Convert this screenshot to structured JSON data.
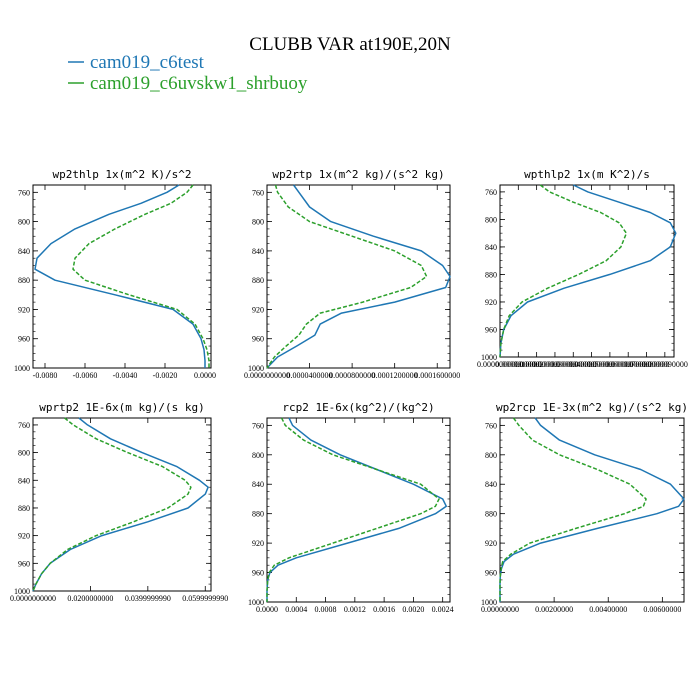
{
  "title": "CLUBB VAR at190E,20N",
  "legend": [
    {
      "label": "cam019_c6test",
      "color": "#1f77b4",
      "dashed": false
    },
    {
      "label": "cam019_c6uvskw1_shrbuoy",
      "color": "#2ca02c",
      "dashed": true
    }
  ],
  "chart_data": [
    {
      "type": "line",
      "title": "wp2thlp  1x(m^2 K)/s^2",
      "ylim": [
        1000,
        750
      ],
      "yticks": [
        760,
        800,
        840,
        880,
        920,
        960,
        1000
      ],
      "xlim": [
        -0.0086,
        0.0003
      ],
      "xticks": [
        -0.008,
        -0.006,
        -0.004,
        -0.002,
        0.0
      ],
      "xticklabels": [
        "-0.0080",
        "-0.0060",
        "-0.0040",
        "-0.0020",
        "0.0000"
      ],
      "series": [
        {
          "color": "#1f77b4",
          "dashed": false,
          "y": [
            750,
            760,
            775,
            790,
            810,
            830,
            850,
            865,
            880,
            900,
            920,
            940,
            960,
            975,
            990,
            1000
          ],
          "x": [
            -0.0013,
            -0.0019,
            -0.0032,
            -0.0048,
            -0.0065,
            -0.0077,
            -0.0084,
            -0.0085,
            -0.0075,
            -0.0045,
            -0.0016,
            -0.0006,
            -0.0002,
            -5e-05,
            0.0,
            0.0
          ]
        },
        {
          "color": "#2ca02c",
          "dashed": true,
          "y": [
            750,
            760,
            775,
            790,
            810,
            830,
            850,
            865,
            880,
            900,
            920,
            940,
            960,
            975,
            990,
            1000
          ],
          "x": [
            -0.0006,
            -0.0009,
            -0.0017,
            -0.003,
            -0.0045,
            -0.0058,
            -0.0065,
            -0.0066,
            -0.006,
            -0.0038,
            -0.0014,
            -0.0005,
            -0.0001,
            0.0001,
            0.0002,
            0.0002
          ]
        }
      ]
    },
    {
      "type": "line",
      "title": "wp2rtp  1x(m^2 kg)/(s^2 kg)",
      "ylim": [
        1000,
        750
      ],
      "yticks": [
        760,
        800,
        840,
        880,
        920,
        960,
        1000
      ],
      "xlim": [
        0.0,
        0.000172
      ],
      "xticks": [
        0.0,
        4e-05,
        8e-05,
        0.00012,
        0.00016
      ],
      "xticklabels": [
        "0.0000000000",
        "0.0000400000",
        "0.0000800000",
        "0.0001200000",
        "0.0001600000"
      ],
      "series": [
        {
          "color": "#1f77b4",
          "dashed": false,
          "y": [
            750,
            760,
            780,
            800,
            820,
            840,
            860,
            875,
            890,
            910,
            925,
            940,
            955,
            970,
            985,
            1000
          ],
          "x": [
            2.5e-05,
            3e-05,
            4e-05,
            6e-05,
            0.0001,
            0.000145,
            0.000165,
            0.000172,
            0.000168,
            0.00012,
            7e-05,
            5e-05,
            4.5e-05,
            2.8e-05,
            1e-05,
            0.0
          ]
        },
        {
          "color": "#2ca02c",
          "dashed": true,
          "y": [
            750,
            760,
            780,
            800,
            820,
            840,
            860,
            875,
            890,
            910,
            925,
            940,
            955,
            970,
            985,
            1000
          ],
          "x": [
            8e-06,
            1e-05,
            2e-05,
            4e-05,
            8e-05,
            0.00012,
            0.000145,
            0.00015,
            0.000135,
            9e-05,
            5e-05,
            3.7e-05,
            3e-05,
            1.8e-05,
            7e-06,
            0.0
          ]
        }
      ]
    },
    {
      "type": "line",
      "title": "wpthlp2  1x(m K^2)/s",
      "ylim": [
        1000,
        750
      ],
      "yticks": [
        760,
        800,
        840,
        880,
        920,
        960,
        1000
      ],
      "xlim": [
        0.0,
        9.5e-06
      ],
      "xticks": [
        0.0,
        1e-06,
        2e-06,
        3e-06,
        4e-06,
        5e-06,
        6e-06,
        7e-06,
        8e-06,
        9e-06
      ],
      "xticklabels": [
        "0.0000000000",
        "0.0000010000",
        "0.0000020000",
        "0.0000030000",
        "0.0000040000",
        "0.0000050000",
        "0.0000060000",
        "0.0000070000",
        "0.0000080000",
        "0.0000090000"
      ],
      "series": [
        {
          "color": "#1f77b4",
          "dashed": false,
          "y": [
            750,
            760,
            775,
            790,
            805,
            820,
            840,
            860,
            880,
            900,
            920,
            940,
            960,
            980,
            1000
          ],
          "x": [
            4e-06,
            4.8e-06,
            6.5e-06,
            8.2e-06,
            9.3e-06,
            9.6e-06,
            9.3e-06,
            8.2e-06,
            6e-06,
            3.5e-06,
            1.5e-06,
            6e-07,
            2e-07,
            5e-08,
            0.0
          ]
        },
        {
          "color": "#2ca02c",
          "dashed": true,
          "y": [
            750,
            760,
            775,
            790,
            805,
            820,
            840,
            860,
            880,
            900,
            920,
            940,
            960,
            980,
            1000
          ],
          "x": [
            2.2e-06,
            2.7e-06,
            4e-06,
            5.5e-06,
            6.5e-06,
            6.9e-06,
            6.6e-06,
            5.8e-06,
            4.3e-06,
            2.6e-06,
            1.2e-06,
            5e-07,
            2e-07,
            5e-08,
            0.0
          ]
        }
      ]
    },
    {
      "type": "line",
      "title": "wprtp2  1E-6x(m kg)/(s kg)",
      "ylim": [
        1000,
        750
      ],
      "yticks": [
        760,
        800,
        840,
        880,
        920,
        960,
        1000
      ],
      "xlim": [
        0.0,
        0.062
      ],
      "xticks": [
        0.0,
        0.02,
        0.04,
        0.06
      ],
      "xticklabels": [
        "0.0000000000",
        "0.0200000000",
        "0.0399999990",
        "0.0599999990"
      ],
      "series": [
        {
          "color": "#1f77b4",
          "dashed": false,
          "y": [
            750,
            760,
            780,
            800,
            820,
            840,
            850,
            860,
            880,
            900,
            920,
            940,
            960,
            975,
            990,
            1000
          ],
          "x": [
            0.016,
            0.019,
            0.027,
            0.038,
            0.05,
            0.058,
            0.061,
            0.06,
            0.054,
            0.04,
            0.024,
            0.013,
            0.006,
            0.003,
            0.001,
            0.0
          ]
        },
        {
          "color": "#2ca02c",
          "dashed": true,
          "y": [
            750,
            760,
            780,
            800,
            820,
            840,
            850,
            860,
            880,
            900,
            920,
            940,
            960,
            975,
            990,
            1000
          ],
          "x": [
            0.011,
            0.014,
            0.022,
            0.033,
            0.045,
            0.053,
            0.055,
            0.054,
            0.047,
            0.035,
            0.022,
            0.012,
            0.006,
            0.003,
            0.001,
            0.0
          ]
        }
      ]
    },
    {
      "type": "line",
      "title": "rcp2  1E-6x(kg^2)/(kg^2)",
      "ylim": [
        1000,
        750
      ],
      "yticks": [
        760,
        800,
        840,
        880,
        920,
        960,
        1000
      ],
      "xlim": [
        0.0,
        0.0025
      ],
      "xticks": [
        0.0,
        0.0004,
        0.0008,
        0.0012,
        0.0016,
        0.002,
        0.0024
      ],
      "xticklabels": [
        "0.0000",
        "0.0004",
        "0.0008",
        "0.0012",
        "0.0016",
        "0.0020",
        "0.0024"
      ],
      "series": [
        {
          "color": "#1f77b4",
          "dashed": false,
          "y": [
            750,
            760,
            780,
            800,
            820,
            840,
            860,
            870,
            880,
            900,
            920,
            940,
            950,
            960,
            970,
            985,
            1000
          ],
          "x": [
            0.0003,
            0.00035,
            0.0006,
            0.001,
            0.0015,
            0.002,
            0.0024,
            0.00245,
            0.0023,
            0.0018,
            0.0011,
            0.0004,
            0.00015,
            4e-05,
            1e-05,
            0.0,
            0.0
          ]
        },
        {
          "color": "#2ca02c",
          "dashed": true,
          "y": [
            750,
            760,
            780,
            800,
            820,
            840,
            860,
            870,
            880,
            900,
            920,
            940,
            950,
            960,
            970,
            985,
            1000
          ],
          "x": [
            0.0002,
            0.00025,
            0.0005,
            0.0009,
            0.0015,
            0.0021,
            0.00235,
            0.0023,
            0.0021,
            0.0015,
            0.0009,
            0.0003,
            0.0001,
            3e-05,
            1e-05,
            0.0,
            0.0
          ]
        }
      ]
    },
    {
      "type": "line",
      "title": "wp2rcp  1E-3x(m^2 kg)/(s^2 kg)",
      "ylim": [
        1000,
        750
      ],
      "yticks": [
        760,
        800,
        840,
        880,
        920,
        960,
        1000
      ],
      "xlim": [
        0.0,
        0.0068
      ],
      "xticks": [
        0.0,
        0.002,
        0.004,
        0.006
      ],
      "xticklabels": [
        "0.00000000",
        "0.00200000",
        "0.00400000",
        "0.00600000"
      ],
      "series": [
        {
          "color": "#1f77b4",
          "dashed": false,
          "y": [
            750,
            760,
            780,
            800,
            820,
            840,
            860,
            870,
            880,
            900,
            920,
            935,
            945,
            955,
            965,
            975,
            990,
            1000
          ],
          "x": [
            0.0013,
            0.0015,
            0.0022,
            0.0035,
            0.0052,
            0.0063,
            0.0068,
            0.0066,
            0.0058,
            0.0036,
            0.0015,
            0.0005,
            0.00015,
            5e-05,
            1e-05,
            0.0,
            0.0,
            0.0
          ]
        },
        {
          "color": "#2ca02c",
          "dashed": true,
          "y": [
            750,
            760,
            780,
            800,
            820,
            840,
            860,
            870,
            880,
            900,
            920,
            935,
            945,
            955,
            965,
            975,
            990,
            1000
          ],
          "x": [
            0.0005,
            0.0007,
            0.0012,
            0.0022,
            0.0036,
            0.0048,
            0.0054,
            0.0053,
            0.0046,
            0.0028,
            0.0011,
            0.0004,
            0.0001,
            4e-05,
            1e-05,
            0.0,
            0.0,
            0.0
          ]
        }
      ]
    }
  ]
}
